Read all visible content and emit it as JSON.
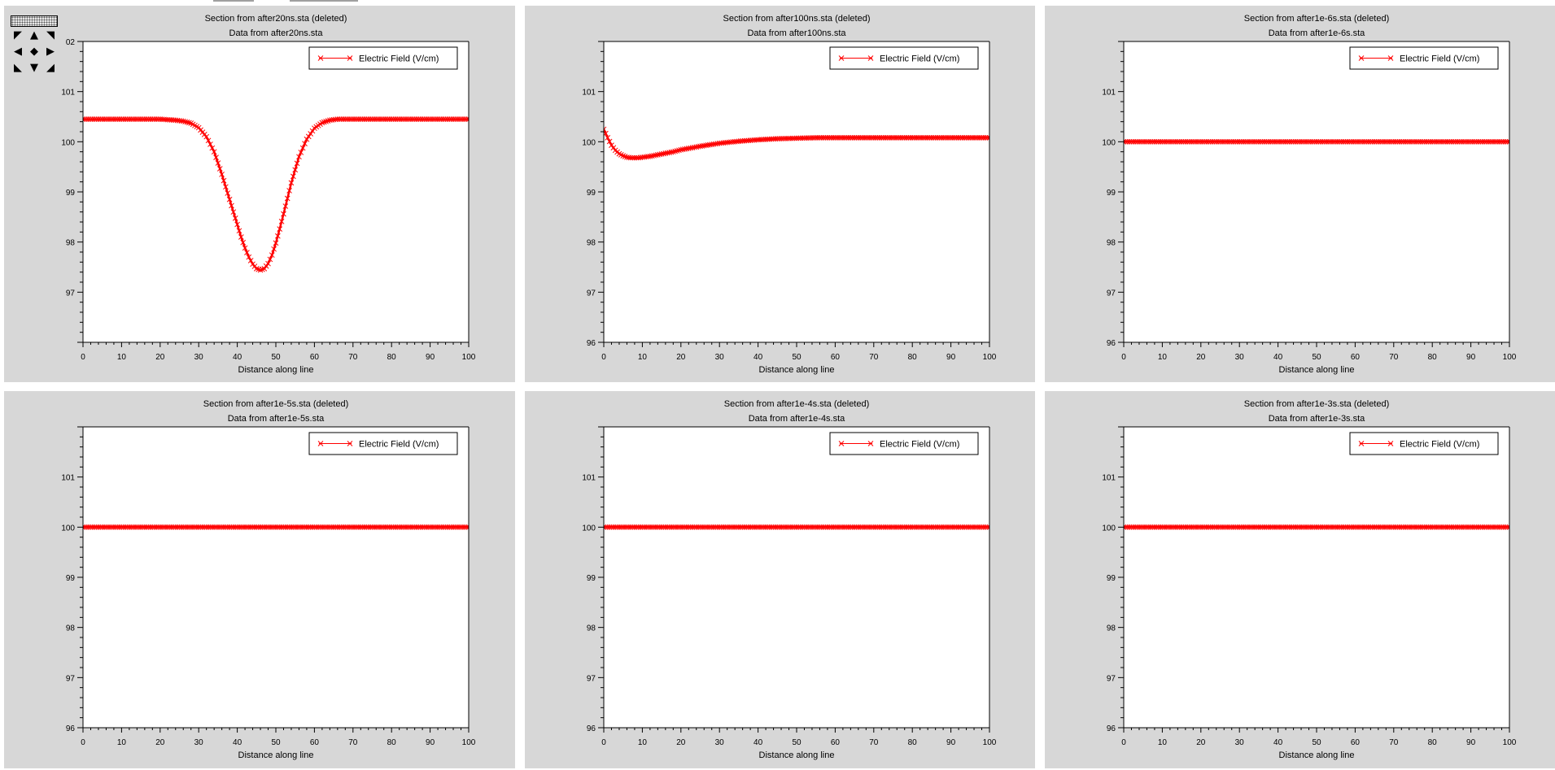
{
  "colors": {
    "panel_bg": "#d7d7d7",
    "plot_bg": "#ffffff",
    "series": "#ff0000",
    "axis": "#000000"
  },
  "nav_tool": {
    "icons": [
      "arrow-up-left-icon",
      "arrow-up-icon",
      "arrow-up-right-icon",
      "arrow-left-icon",
      "center-diamond-icon",
      "arrow-right-icon",
      "arrow-down-left-icon",
      "arrow-down-icon",
      "arrow-down-right-icon"
    ]
  },
  "chart_data": [
    {
      "type": "line",
      "title": "Section from after20ns.sta (deleted)",
      "subtitle": "Data from after20ns.sta",
      "xlabel": "Distance along line",
      "ylabel": "",
      "xlim": [
        0,
        100
      ],
      "ylim": [
        96,
        102
      ],
      "x_ticks": [
        "0",
        "10",
        "20",
        "30",
        "40",
        "50",
        "60",
        "70",
        "80",
        "90",
        "100"
      ],
      "y_ticks": [
        "97",
        "98",
        "99",
        "100",
        "101"
      ],
      "y_top_label_partial": "02",
      "legend": {
        "position": "top-right",
        "label": "Electric Field (V/cm)"
      },
      "series": [
        {
          "name": "Electric Field (V/cm)",
          "x": [
            0,
            5,
            10,
            15,
            20,
            22,
            24,
            26,
            28,
            30,
            32,
            34,
            36,
            38,
            40,
            41,
            42,
            43,
            44,
            45,
            46,
            47,
            48,
            49,
            50,
            51,
            52,
            54,
            56,
            58,
            60,
            62,
            64,
            66,
            68,
            70,
            75,
            80,
            90,
            100
          ],
          "y": [
            100.45,
            100.45,
            100.45,
            100.45,
            100.45,
            100.44,
            100.43,
            100.41,
            100.37,
            100.28,
            100.1,
            99.8,
            99.35,
            98.85,
            98.35,
            98.1,
            97.88,
            97.7,
            97.56,
            97.47,
            97.44,
            97.47,
            97.57,
            97.74,
            97.98,
            98.26,
            98.56,
            99.18,
            99.7,
            100.05,
            100.27,
            100.38,
            100.43,
            100.45,
            100.45,
            100.45,
            100.45,
            100.45,
            100.45,
            100.45
          ]
        }
      ]
    },
    {
      "type": "line",
      "title": "Section from after100ns.sta (deleted)",
      "subtitle": "Data from after100ns.sta",
      "xlabel": "Distance along line",
      "ylabel": "",
      "xlim": [
        0,
        100
      ],
      "ylim": [
        96,
        102
      ],
      "x_ticks": [
        "0",
        "10",
        "20",
        "30",
        "40",
        "50",
        "60",
        "70",
        "80",
        "90",
        "100"
      ],
      "y_ticks": [
        "96",
        "97",
        "98",
        "99",
        "100",
        "101"
      ],
      "legend": {
        "position": "top-right",
        "label": "Electric Field (V/cm)"
      },
      "series": [
        {
          "name": "Electric Field (V/cm)",
          "x": [
            0,
            1,
            2,
            3,
            4,
            5,
            6,
            7,
            8,
            9,
            10,
            12,
            14,
            16,
            18,
            20,
            25,
            30,
            35,
            40,
            45,
            50,
            55,
            60,
            70,
            80,
            90,
            100
          ],
          "y": [
            100.25,
            100.08,
            99.93,
            99.83,
            99.76,
            99.72,
            99.69,
            99.68,
            99.68,
            99.68,
            99.69,
            99.71,
            99.74,
            99.77,
            99.8,
            99.84,
            99.91,
            99.97,
            100.01,
            100.04,
            100.06,
            100.07,
            100.08,
            100.08,
            100.08,
            100.08,
            100.08,
            100.08
          ]
        }
      ]
    },
    {
      "type": "line",
      "title": "Section from after1e-6s.sta (deleted)",
      "subtitle": "Data from after1e-6s.sta",
      "xlabel": "Distance along line",
      "ylabel": "",
      "xlim": [
        0,
        100
      ],
      "ylim": [
        96,
        102
      ],
      "x_ticks": [
        "0",
        "10",
        "20",
        "30",
        "40",
        "50",
        "60",
        "70",
        "80",
        "90",
        "100"
      ],
      "y_ticks": [
        "96",
        "97",
        "98",
        "99",
        "100",
        "101"
      ],
      "legend": {
        "position": "top-right",
        "label": "Electric Field (V/cm)"
      },
      "series": [
        {
          "name": "Electric Field (V/cm)",
          "x": [
            0,
            100
          ],
          "y": [
            100.0,
            100.0
          ]
        }
      ]
    },
    {
      "type": "line",
      "title": "Section from after1e-5s.sta (deleted)",
      "subtitle": "Data from after1e-5s.sta",
      "xlabel": "Distance along line",
      "ylabel": "",
      "xlim": [
        0,
        100
      ],
      "ylim": [
        96,
        102
      ],
      "x_ticks": [
        "0",
        "10",
        "20",
        "30",
        "40",
        "50",
        "60",
        "70",
        "80",
        "90",
        "100"
      ],
      "y_ticks": [
        "96",
        "97",
        "98",
        "99",
        "100",
        "101"
      ],
      "legend": {
        "position": "top-right",
        "label": "Electric Field (V/cm)"
      },
      "series": [
        {
          "name": "Electric Field (V/cm)",
          "x": [
            0,
            100
          ],
          "y": [
            100.0,
            100.0
          ]
        }
      ]
    },
    {
      "type": "line",
      "title": "Section from after1e-4s.sta (deleted)",
      "subtitle": "Data from after1e-4s.sta",
      "xlabel": "Distance along line",
      "ylabel": "",
      "xlim": [
        0,
        100
      ],
      "ylim": [
        96,
        102
      ],
      "x_ticks": [
        "0",
        "10",
        "20",
        "30",
        "40",
        "50",
        "60",
        "70",
        "80",
        "90",
        "100"
      ],
      "y_ticks": [
        "96",
        "97",
        "98",
        "99",
        "100",
        "101"
      ],
      "legend": {
        "position": "top-right",
        "label": "Electric Field (V/cm)"
      },
      "series": [
        {
          "name": "Electric Field (V/cm)",
          "x": [
            0,
            100
          ],
          "y": [
            100.0,
            100.0
          ]
        }
      ]
    },
    {
      "type": "line",
      "title": "Section from after1e-3s.sta (deleted)",
      "subtitle": "Data from after1e-3s.sta",
      "xlabel": "Distance along line",
      "ylabel": "",
      "xlim": [
        0,
        100
      ],
      "ylim": [
        96,
        102
      ],
      "x_ticks": [
        "0",
        "10",
        "20",
        "30",
        "40",
        "50",
        "60",
        "70",
        "80",
        "90",
        "100"
      ],
      "y_ticks": [
        "96",
        "97",
        "98",
        "99",
        "100",
        "101"
      ],
      "legend": {
        "position": "top-right",
        "label": "Electric Field (V/cm)"
      },
      "series": [
        {
          "name": "Electric Field (V/cm)",
          "x": [
            0,
            100
          ],
          "y": [
            100.0,
            100.0
          ]
        }
      ]
    }
  ]
}
